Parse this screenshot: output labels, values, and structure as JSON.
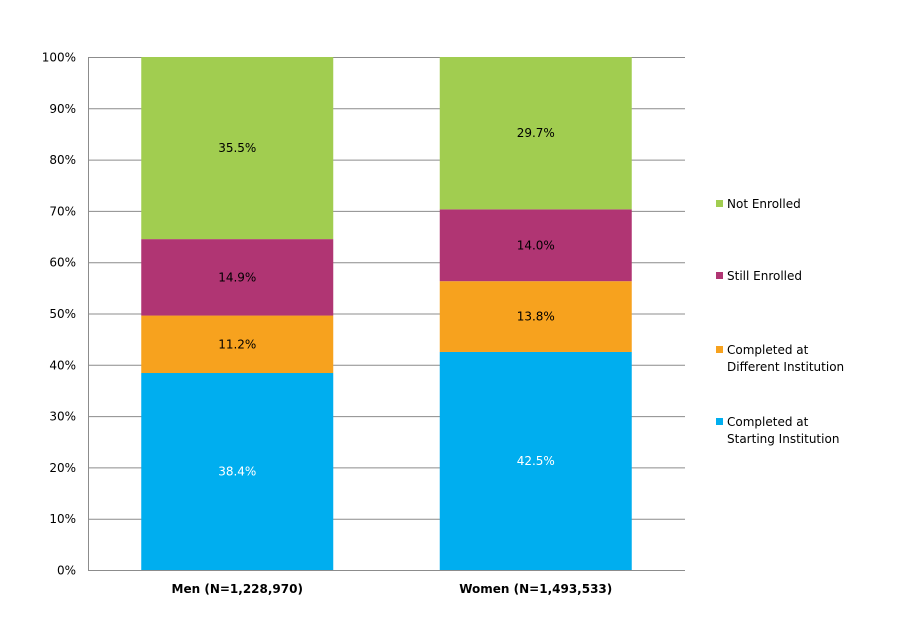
{
  "chart_data": {
    "type": "bar",
    "stacked": true,
    "categories": [
      "Men (N=1,228,970)",
      "Women (N=1,493,533)"
    ],
    "series": [
      {
        "name": "Completed at Starting Institution",
        "values": [
          38.4,
          42.5
        ],
        "color": "#00AEEF",
        "label_color": "#FFFFFF"
      },
      {
        "name": "Completed at Different Institution",
        "values": [
          11.2,
          13.8
        ],
        "color": "#F7A21E",
        "label_color": "#000000"
      },
      {
        "name": "Still Enrolled",
        "values": [
          14.9,
          14.0
        ],
        "color": "#B03573",
        "label_color": "#000000"
      },
      {
        "name": "Not Enrolled",
        "values": [
          35.5,
          29.7
        ],
        "color": "#A1CD50",
        "label_color": "#000000"
      }
    ],
    "data_labels": [
      [
        "38.4%",
        "42.5%"
      ],
      [
        "11.2%",
        "13.8%"
      ],
      [
        "14.9%",
        "14.0%"
      ],
      [
        "35.5%",
        "29.7%"
      ]
    ],
    "legend_labels": [
      [
        "Not Enrolled"
      ],
      [
        "Still Enrolled"
      ],
      [
        "Completed at",
        "Different Institution"
      ],
      [
        "Completed at",
        "Starting Institution"
      ]
    ],
    "ylim": [
      0,
      100
    ],
    "yticks": [
      "0%",
      "10%",
      "20%",
      "30%",
      "40%",
      "50%",
      "60%",
      "70%",
      "80%",
      "90%",
      "100%"
    ],
    "grid": true,
    "legend_position": "right",
    "title": "",
    "xlabel": "",
    "ylabel": ""
  }
}
